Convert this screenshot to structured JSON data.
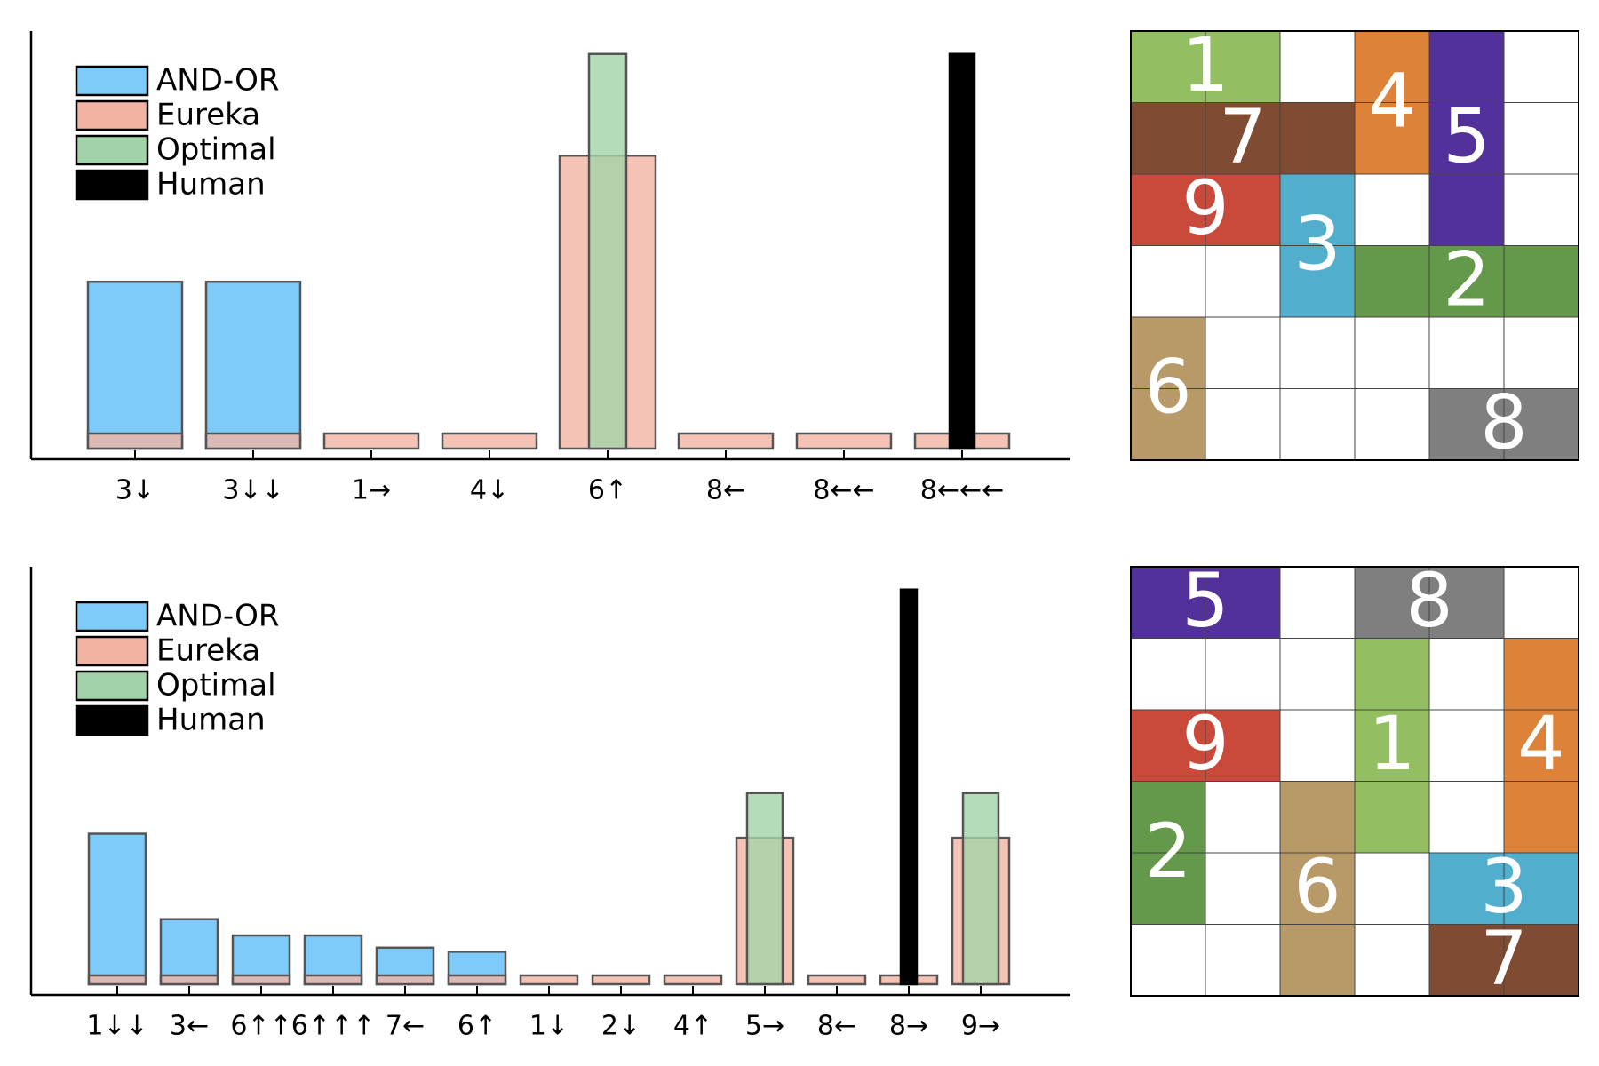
{
  "chart_data": [
    {
      "type": "bar",
      "categories": [
        "3↓",
        "3↓↓",
        "1→",
        "4↓",
        "6↑",
        "8←",
        "8←←",
        "8←←←"
      ],
      "legend": {
        "placement": "upper-left",
        "entries": [
          "AND-OR",
          "Eureka",
          "Optimal",
          "Human"
        ]
      },
      "ylim": [
        0,
        1
      ],
      "axes_ticks_y": false,
      "series": [
        {
          "name": "AND-OR",
          "color": "#7ecaf9",
          "values": [
            0.41,
            0.41,
            0,
            0,
            0,
            0,
            0,
            0
          ]
        },
        {
          "name": "Eureka",
          "color": "#f2b4a2",
          "values": [
            0.035,
            0.035,
            0.035,
            0.035,
            0.72,
            0.035,
            0.035,
            0.035
          ]
        },
        {
          "name": "Optimal",
          "color": "#a2d3a8",
          "values": [
            0,
            0,
            0,
            0,
            0.97,
            0,
            0,
            0
          ]
        },
        {
          "name": "Human",
          "color": "#000000",
          "values": [
            0,
            0,
            0,
            0,
            0,
            0,
            0,
            0.97
          ]
        }
      ]
    },
    {
      "type": "bar",
      "categories": [
        "1↓↓",
        "3←",
        "6↑↑",
        "6↑↑↑",
        "7←",
        "6↑",
        "1↓",
        "2↓",
        "4↑",
        "5→",
        "8←",
        "8→",
        "9→"
      ],
      "legend": {
        "placement": "upper-left",
        "entries": [
          "AND-OR",
          "Eureka",
          "Optimal",
          "Human"
        ]
      },
      "ylim": [
        0,
        1
      ],
      "axes_ticks_y": false,
      "series": [
        {
          "name": "AND-OR",
          "color": "#7ecaf9",
          "values": [
            0.37,
            0.16,
            0.12,
            0.12,
            0.09,
            0.08,
            0,
            0,
            0,
            0,
            0,
            0,
            0
          ]
        },
        {
          "name": "Eureka",
          "color": "#f2b4a2",
          "values": [
            0.02,
            0.02,
            0.02,
            0.02,
            0.02,
            0.02,
            0.02,
            0.02,
            0.02,
            0.36,
            0.02,
            0.02,
            0.36
          ]
        },
        {
          "name": "Optimal",
          "color": "#a2d3a8",
          "values": [
            0,
            0,
            0,
            0,
            0,
            0,
            0,
            0,
            0,
            0.47,
            0,
            0,
            0.47
          ]
        },
        {
          "name": "Human",
          "color": "#000000",
          "values": [
            0,
            0,
            0,
            0,
            0,
            0,
            0,
            0,
            0,
            0,
            0,
            0.97,
            0
          ]
        }
      ]
    }
  ],
  "boards": [
    {
      "cols": 6,
      "rows": 6,
      "pieces": [
        {
          "id": "1",
          "cells": [
            [
              0,
              0
            ],
            [
              1,
              0
            ]
          ],
          "color": "#93bf62"
        },
        {
          "id": "4",
          "cells": [
            [
              3,
              0
            ],
            [
              3,
              1
            ]
          ],
          "color": "#dc8339"
        },
        {
          "id": "5",
          "cells": [
            [
              4,
              0
            ],
            [
              4,
              1
            ],
            [
              4,
              2
            ]
          ],
          "color": "#52329a"
        },
        {
          "id": "7",
          "cells": [
            [
              0,
              1
            ],
            [
              1,
              1
            ],
            [
              2,
              1
            ]
          ],
          "color": "#7f4b33"
        },
        {
          "id": "9",
          "cells": [
            [
              0,
              2
            ],
            [
              1,
              2
            ]
          ],
          "color": "#c94a3b"
        },
        {
          "id": "3",
          "cells": [
            [
              2,
              2
            ],
            [
              2,
              3
            ]
          ],
          "color": "#51aecc"
        },
        {
          "id": "2",
          "cells": [
            [
              3,
              3
            ],
            [
              4,
              3
            ],
            [
              5,
              3
            ]
          ],
          "color": "#64984a"
        },
        {
          "id": "6",
          "cells": [
            [
              0,
              4
            ],
            [
              0,
              5
            ]
          ],
          "color": "#b89a69"
        },
        {
          "id": "8",
          "cells": [
            [
              4,
              5
            ],
            [
              5,
              5
            ]
          ],
          "color": "#7f7f7f"
        }
      ]
    },
    {
      "cols": 6,
      "rows": 6,
      "pieces": [
        {
          "id": "5",
          "cells": [
            [
              0,
              0
            ],
            [
              1,
              0
            ]
          ],
          "color": "#52329a"
        },
        {
          "id": "8",
          "cells": [
            [
              3,
              0
            ],
            [
              4,
              0
            ]
          ],
          "color": "#7f7f7f"
        },
        {
          "id": "1",
          "cells": [
            [
              3,
              1
            ],
            [
              3,
              2
            ],
            [
              3,
              3
            ]
          ],
          "color": "#93bf62"
        },
        {
          "id": "4",
          "cells": [
            [
              5,
              1
            ],
            [
              5,
              2
            ],
            [
              5,
              3
            ]
          ],
          "color": "#dc8339"
        },
        {
          "id": "9",
          "cells": [
            [
              0,
              2
            ],
            [
              1,
              2
            ]
          ],
          "color": "#c94a3b"
        },
        {
          "id": "2",
          "cells": [
            [
              0,
              3
            ],
            [
              0,
              4
            ]
          ],
          "color": "#64984a"
        },
        {
          "id": "6",
          "cells": [
            [
              2,
              3
            ],
            [
              2,
              4
            ],
            [
              2,
              5
            ]
          ],
          "color": "#b89a69"
        },
        {
          "id": "3",
          "cells": [
            [
              4,
              4
            ],
            [
              5,
              4
            ]
          ],
          "color": "#51aecc"
        },
        {
          "id": "7",
          "cells": [
            [
              4,
              5
            ],
            [
              5,
              5
            ]
          ],
          "color": "#7f4b33"
        }
      ]
    }
  ]
}
